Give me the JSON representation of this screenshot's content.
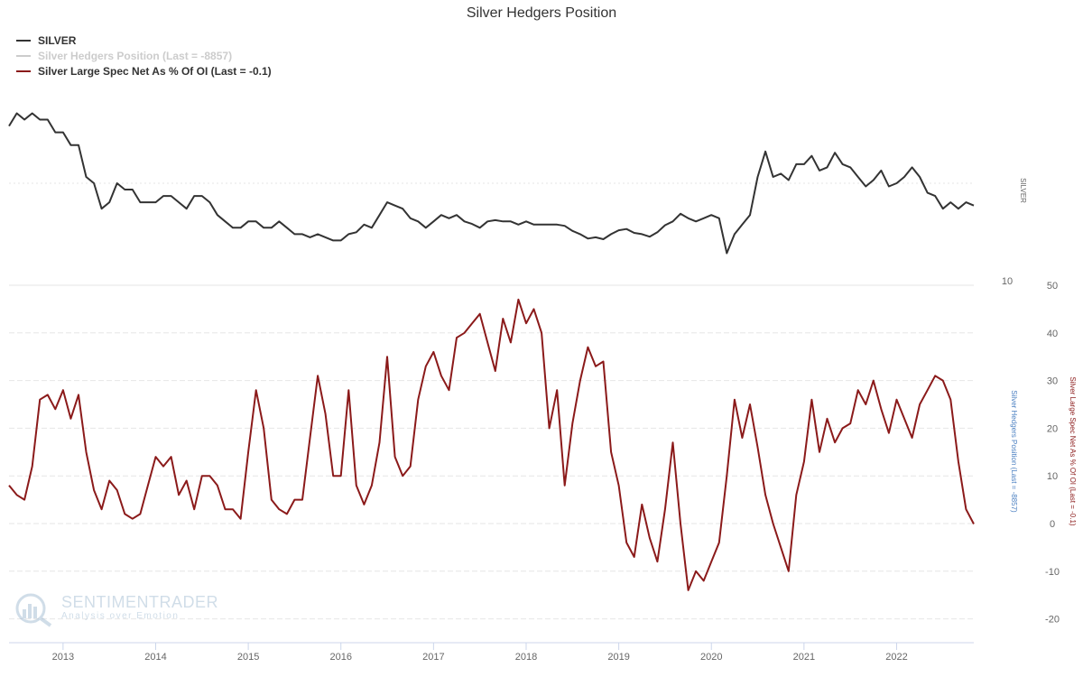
{
  "chart_data": {
    "type": "line",
    "title": "Silver Hedgers Position",
    "x_ticks": [
      "2013",
      "2014",
      "2015",
      "2016",
      "2017",
      "2018",
      "2019",
      "2020",
      "2021",
      "2022"
    ],
    "x_range": [
      "2012-06",
      "2022-11"
    ],
    "silver_axis": {
      "title": "SILVER",
      "tick_labels": [
        "10"
      ]
    },
    "hedgers_axis": {
      "title": "Silver Hedgers Position (Last = -8857)"
    },
    "spec_axis": {
      "title": "Silver Large Spec Net As % Of OI (Last = -0.1)",
      "ticks": [
        50,
        40,
        30,
        20,
        10,
        0,
        -10,
        -20
      ],
      "ylim": [
        -25,
        50
      ]
    },
    "legend": {
      "placement": "top-left"
    },
    "series": [
      {
        "name": "SILVER",
        "color": "#333333",
        "visible": true,
        "points": [
          [
            "2012-06",
            32
          ],
          [
            "2012-07",
            34
          ],
          [
            "2012-08",
            33
          ],
          [
            "2012-09",
            34
          ],
          [
            "2012-10",
            33
          ],
          [
            "2012-11",
            33
          ],
          [
            "2012-12",
            31
          ],
          [
            "2013-01",
            31
          ],
          [
            "2013-02",
            29
          ],
          [
            "2013-03",
            29
          ],
          [
            "2013-04",
            24
          ],
          [
            "2013-05",
            23
          ],
          [
            "2013-06",
            19
          ],
          [
            "2013-07",
            20
          ],
          [
            "2013-08",
            23
          ],
          [
            "2013-09",
            22
          ],
          [
            "2013-10",
            22
          ],
          [
            "2013-11",
            20
          ],
          [
            "2013-12",
            20
          ],
          [
            "2014-01",
            20
          ],
          [
            "2014-02",
            21
          ],
          [
            "2014-03",
            21
          ],
          [
            "2014-04",
            20
          ],
          [
            "2014-05",
            19
          ],
          [
            "2014-06",
            21
          ],
          [
            "2014-07",
            21
          ],
          [
            "2014-08",
            20
          ],
          [
            "2014-09",
            18
          ],
          [
            "2014-10",
            17
          ],
          [
            "2014-11",
            16
          ],
          [
            "2014-12",
            16
          ],
          [
            "2015-01",
            17
          ],
          [
            "2015-02",
            17
          ],
          [
            "2015-03",
            16
          ],
          [
            "2015-04",
            16
          ],
          [
            "2015-05",
            17
          ],
          [
            "2015-06",
            16
          ],
          [
            "2015-07",
            15
          ],
          [
            "2015-08",
            15
          ],
          [
            "2015-09",
            14.5
          ],
          [
            "2015-10",
            15
          ],
          [
            "2015-11",
            14.5
          ],
          [
            "2015-12",
            14
          ],
          [
            "2016-01",
            14
          ],
          [
            "2016-02",
            15
          ],
          [
            "2016-03",
            15.3
          ],
          [
            "2016-04",
            16.5
          ],
          [
            "2016-05",
            16
          ],
          [
            "2016-06",
            18
          ],
          [
            "2016-07",
            20
          ],
          [
            "2016-08",
            19.5
          ],
          [
            "2016-09",
            19
          ],
          [
            "2016-10",
            17.5
          ],
          [
            "2016-11",
            17
          ],
          [
            "2016-12",
            16
          ],
          [
            "2017-01",
            17
          ],
          [
            "2017-02",
            18
          ],
          [
            "2017-03",
            17.5
          ],
          [
            "2017-04",
            18
          ],
          [
            "2017-05",
            17
          ],
          [
            "2017-06",
            16.6
          ],
          [
            "2017-07",
            16
          ],
          [
            "2017-08",
            17
          ],
          [
            "2017-09",
            17.2
          ],
          [
            "2017-10",
            17
          ],
          [
            "2017-11",
            17
          ],
          [
            "2017-12",
            16.5
          ],
          [
            "2018-01",
            17
          ],
          [
            "2018-02",
            16.5
          ],
          [
            "2018-03",
            16.5
          ],
          [
            "2018-04",
            16.5
          ],
          [
            "2018-05",
            16.5
          ],
          [
            "2018-06",
            16.3
          ],
          [
            "2018-07",
            15.5
          ],
          [
            "2018-08",
            15
          ],
          [
            "2018-09",
            14.3
          ],
          [
            "2018-10",
            14.5
          ],
          [
            "2018-11",
            14.2
          ],
          [
            "2018-12",
            15
          ],
          [
            "2019-01",
            15.6
          ],
          [
            "2019-02",
            15.8
          ],
          [
            "2019-03",
            15.2
          ],
          [
            "2019-04",
            15
          ],
          [
            "2019-05",
            14.6
          ],
          [
            "2019-06",
            15.3
          ],
          [
            "2019-07",
            16.4
          ],
          [
            "2019-08",
            17
          ],
          [
            "2019-09",
            18.2
          ],
          [
            "2019-10",
            17.5
          ],
          [
            "2019-11",
            17
          ],
          [
            "2019-12",
            17.5
          ],
          [
            "2020-01",
            18
          ],
          [
            "2020-02",
            17.5
          ],
          [
            "2020-03",
            12
          ],
          [
            "2020-04",
            15
          ],
          [
            "2020-05",
            16.5
          ],
          [
            "2020-06",
            18
          ],
          [
            "2020-07",
            24
          ],
          [
            "2020-08",
            28
          ],
          [
            "2020-09",
            24
          ],
          [
            "2020-10",
            24.5
          ],
          [
            "2020-11",
            23.5
          ],
          [
            "2020-12",
            26
          ],
          [
            "2021-01",
            26
          ],
          [
            "2021-02",
            27.3
          ],
          [
            "2021-03",
            25
          ],
          [
            "2021-04",
            25.5
          ],
          [
            "2021-05",
            27.8
          ],
          [
            "2021-06",
            26
          ],
          [
            "2021-07",
            25.5
          ],
          [
            "2021-08",
            24
          ],
          [
            "2021-09",
            22.5
          ],
          [
            "2021-10",
            23.5
          ],
          [
            "2021-11",
            25
          ],
          [
            "2021-12",
            22.5
          ],
          [
            "2022-01",
            23
          ],
          [
            "2022-02",
            24
          ],
          [
            "2022-03",
            25.5
          ],
          [
            "2022-04",
            24
          ],
          [
            "2022-05",
            21.5
          ],
          [
            "2022-06",
            21
          ],
          [
            "2022-07",
            19
          ],
          [
            "2022-08",
            20
          ],
          [
            "2022-09",
            19
          ],
          [
            "2022-10",
            20
          ],
          [
            "2022-11",
            19.5
          ]
        ]
      },
      {
        "name": "Silver Hedgers Position (Last = -8857)",
        "color": "#cccccc",
        "visible": false,
        "points": []
      },
      {
        "name": "Silver Large Spec Net As % Of OI (Last = -0.1)",
        "color": "#8b1a1a",
        "visible": true,
        "points": [
          [
            "2012-06",
            8
          ],
          [
            "2012-07",
            6
          ],
          [
            "2012-08",
            5
          ],
          [
            "2012-09",
            12
          ],
          [
            "2012-10",
            26
          ],
          [
            "2012-11",
            27
          ],
          [
            "2012-12",
            24
          ],
          [
            "2013-01",
            28
          ],
          [
            "2013-02",
            22
          ],
          [
            "2013-03",
            27
          ],
          [
            "2013-04",
            15
          ],
          [
            "2013-05",
            7
          ],
          [
            "2013-06",
            3
          ],
          [
            "2013-07",
            9
          ],
          [
            "2013-08",
            7
          ],
          [
            "2013-09",
            2
          ],
          [
            "2013-10",
            1
          ],
          [
            "2013-11",
            2
          ],
          [
            "2013-12",
            8
          ],
          [
            "2014-01",
            14
          ],
          [
            "2014-02",
            12
          ],
          [
            "2014-03",
            14
          ],
          [
            "2014-04",
            6
          ],
          [
            "2014-05",
            9
          ],
          [
            "2014-06",
            3
          ],
          [
            "2014-07",
            10
          ],
          [
            "2014-08",
            10
          ],
          [
            "2014-09",
            8
          ],
          [
            "2014-10",
            3
          ],
          [
            "2014-11",
            3
          ],
          [
            "2014-12",
            1
          ],
          [
            "2015-01",
            15
          ],
          [
            "2015-02",
            28
          ],
          [
            "2015-03",
            20
          ],
          [
            "2015-04",
            5
          ],
          [
            "2015-05",
            3
          ],
          [
            "2015-06",
            2
          ],
          [
            "2015-07",
            5
          ],
          [
            "2015-08",
            5
          ],
          [
            "2015-09",
            18
          ],
          [
            "2015-10",
            31
          ],
          [
            "2015-11",
            23
          ],
          [
            "2015-12",
            10
          ],
          [
            "2016-01",
            10
          ],
          [
            "2016-02",
            28
          ],
          [
            "2016-03",
            8
          ],
          [
            "2016-04",
            4
          ],
          [
            "2016-05",
            8
          ],
          [
            "2016-06",
            17
          ],
          [
            "2016-07",
            35
          ],
          [
            "2016-08",
            14
          ],
          [
            "2016-09",
            10
          ],
          [
            "2016-10",
            12
          ],
          [
            "2016-11",
            26
          ],
          [
            "2016-12",
            33
          ],
          [
            "2017-01",
            36
          ],
          [
            "2017-02",
            31
          ],
          [
            "2017-03",
            28
          ],
          [
            "2017-04",
            39
          ],
          [
            "2017-05",
            40
          ],
          [
            "2017-06",
            42
          ],
          [
            "2017-07",
            44
          ],
          [
            "2017-08",
            38
          ],
          [
            "2017-09",
            32
          ],
          [
            "2017-10",
            43
          ],
          [
            "2017-11",
            38
          ],
          [
            "2017-12",
            47
          ],
          [
            "2018-01",
            42
          ],
          [
            "2018-02",
            45
          ],
          [
            "2018-03",
            40
          ],
          [
            "2018-04",
            20
          ],
          [
            "2018-05",
            28
          ],
          [
            "2018-06",
            8
          ],
          [
            "2018-07",
            21
          ],
          [
            "2018-08",
            30
          ],
          [
            "2018-09",
            37
          ],
          [
            "2018-10",
            33
          ],
          [
            "2018-11",
            34
          ],
          [
            "2018-12",
            15
          ],
          [
            "2019-01",
            8
          ],
          [
            "2019-02",
            -4
          ],
          [
            "2019-03",
            -7
          ],
          [
            "2019-04",
            4
          ],
          [
            "2019-05",
            -3
          ],
          [
            "2019-06",
            -8
          ],
          [
            "2019-07",
            3
          ],
          [
            "2019-08",
            17
          ],
          [
            "2019-09",
            0
          ],
          [
            "2019-10",
            -14
          ],
          [
            "2019-11",
            -10
          ],
          [
            "2019-12",
            -12
          ],
          [
            "2020-01",
            -8
          ],
          [
            "2020-02",
            -4
          ],
          [
            "2020-03",
            10
          ],
          [
            "2020-04",
            26
          ],
          [
            "2020-05",
            18
          ],
          [
            "2020-06",
            25
          ],
          [
            "2020-07",
            16
          ],
          [
            "2020-08",
            6
          ],
          [
            "2020-09",
            0
          ],
          [
            "2020-10",
            -5
          ],
          [
            "2020-11",
            -10
          ],
          [
            "2020-12",
            6
          ],
          [
            "2021-01",
            13
          ],
          [
            "2021-02",
            26
          ],
          [
            "2021-03",
            15
          ],
          [
            "2021-04",
            22
          ],
          [
            "2021-05",
            17
          ],
          [
            "2021-06",
            20
          ],
          [
            "2021-07",
            21
          ],
          [
            "2021-08",
            28
          ],
          [
            "2021-09",
            25
          ],
          [
            "2021-10",
            30
          ],
          [
            "2021-11",
            24
          ],
          [
            "2021-12",
            19
          ],
          [
            "2022-01",
            26
          ],
          [
            "2022-02",
            22
          ],
          [
            "2022-03",
            18
          ],
          [
            "2022-04",
            25
          ],
          [
            "2022-05",
            28
          ],
          [
            "2022-06",
            31
          ],
          [
            "2022-07",
            30
          ],
          [
            "2022-08",
            26
          ],
          [
            "2022-09",
            13
          ],
          [
            "2022-10",
            3
          ],
          [
            "2022-11",
            -0.1
          ]
        ]
      }
    ]
  },
  "watermark": {
    "name": "SENTIMENTRADER",
    "tagline": "Analysis over Emotion"
  }
}
